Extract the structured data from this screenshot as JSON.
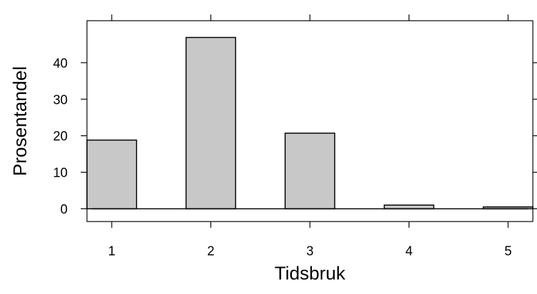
{
  "chart_data": {
    "type": "bar",
    "xlabel": "Tidsbruk",
    "ylabel": "Prosentandel",
    "categories": [
      "1",
      "2",
      "3",
      "4",
      "5"
    ],
    "values": [
      18.8,
      46.9,
      20.7,
      1.0,
      0.5
    ],
    "ylim": [
      -3.5,
      51.5
    ],
    "yticks": [
      0,
      10,
      20,
      30,
      40
    ],
    "ytick_labels": [
      "0",
      "10",
      "20",
      "30",
      "40"
    ],
    "grid": false,
    "legend": "none",
    "bar_color": "#c8c8c8",
    "bar_edge_color": "#000000"
  }
}
